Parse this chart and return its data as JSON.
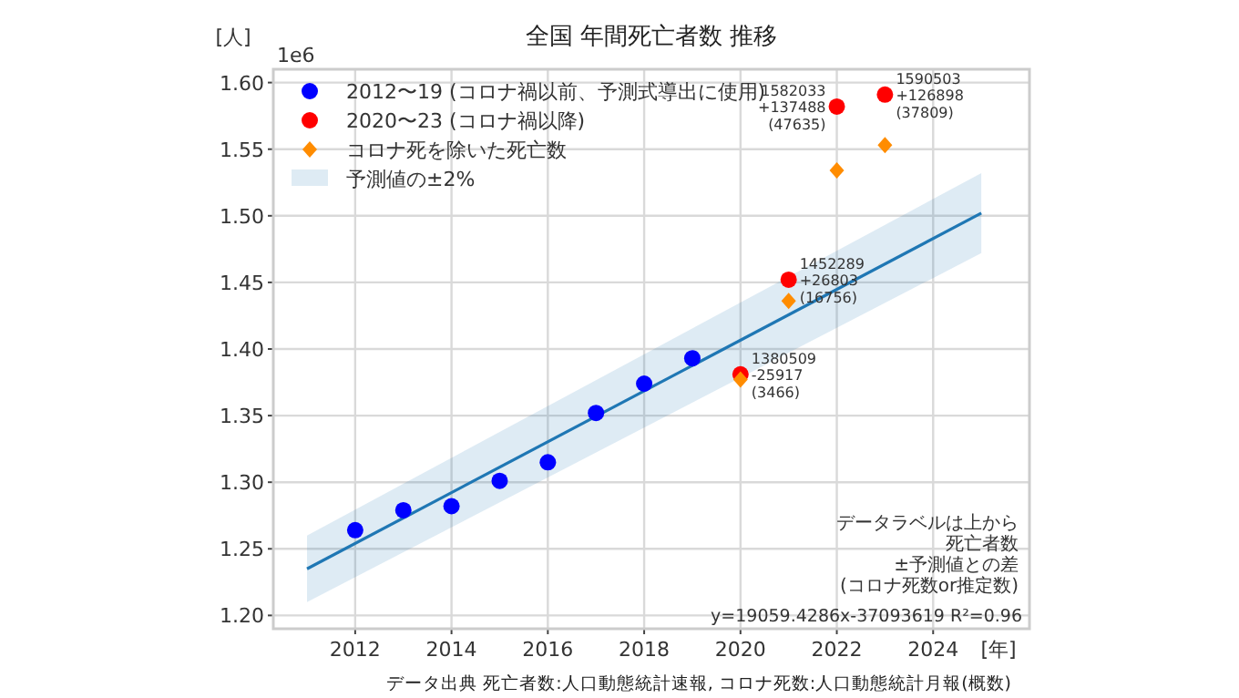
{
  "chart_data": {
    "type": "scatter",
    "title": "全国 年間死亡者数 推移",
    "xlabel": "[年]",
    "ylabel": "[人]",
    "xlim": [
      2010.3,
      2026
    ],
    "xticks": [
      2012,
      2014,
      2016,
      2018,
      2020,
      2022,
      2024
    ],
    "ylim": [
      1.19,
      1.61
    ],
    "yticks": [
      {
        "value": 1.2,
        "label": "1.20"
      },
      {
        "value": 1.25,
        "label": "1.25"
      },
      {
        "value": 1.3,
        "label": "1.30"
      },
      {
        "value": 1.35,
        "label": "1.35"
      },
      {
        "value": 1.4,
        "label": "1.40"
      },
      {
        "value": 1.45,
        "label": "1.45"
      },
      {
        "value": 1.5,
        "label": "1.50"
      },
      {
        "value": 1.55,
        "label": "1.55"
      },
      {
        "value": 1.6,
        "label": "1.60"
      }
    ],
    "grid": true,
    "legend": "top left",
    "series": [
      {
        "name": "2012〜19 (コロナ禍以前、予測式導出に使用)",
        "color": "#0000ff",
        "marker": "circle",
        "x": [
          2012,
          2013,
          2014,
          2015,
          2016,
          2017,
          2018,
          2019
        ],
        "values": [
          1.264,
          1.279,
          1.282,
          1.301,
          1.315,
          1.352,
          1.374,
          1.393
        ]
      },
      {
        "name": "2020〜23 (コロナ禍以降)",
        "color": "#ff0000",
        "marker": "circle",
        "x": [
          2020,
          2021,
          2022,
          2023
        ],
        "values": [
          1.381,
          1.452,
          1.582,
          1.591
        ]
      },
      {
        "name": "コロナ死を除いた死亡数",
        "color": "#ff8c00",
        "marker": "diamond",
        "x": [
          2020,
          2021,
          2022,
          2023
        ],
        "values": [
          1.377,
          1.436,
          1.534,
          1.553
        ]
      },
      {
        "type": "line",
        "name": "予測値の±2%",
        "color": "#1f77b4",
        "x": [
          2011,
          2025
        ],
        "values": [
          1.235,
          1.502
        ],
        "lower": [
          1.21,
          1.472
        ],
        "upper": [
          1.26,
          1.532
        ]
      }
    ],
    "annotations": [
      {
        "text": "1380509\n-25917\n(3466)",
        "x": 2020,
        "y": 1.381
      },
      {
        "text": "1452289\n+26803\n(16756)",
        "x": 2021,
        "y": 1.452
      },
      {
        "text": "1582033\n+137488\n(47635)",
        "x": 2022,
        "y": 1.582
      },
      {
        "text": "1590503\n+126898\n(37809)",
        "x": 2023,
        "y": 1.591
      },
      "1e6",
      "データラベルは上から",
      "死亡者数",
      "±予測値との差",
      "(コロナ死数or推定数)",
      "y=19059.4286x-37093619   R²=0.96",
      "データ出典 死亡者数:人口動態統計速報, コロナ死数:人口動態統計月報(概数)"
    ]
  }
}
